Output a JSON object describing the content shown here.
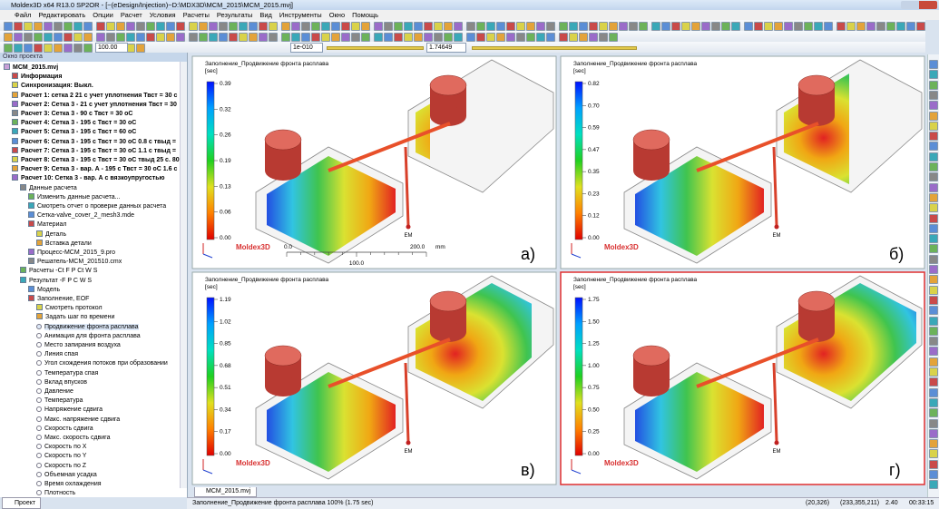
{
  "window": {
    "title": "Moldex3D  x64 R13.0 SP2OR - [~(eDesign/Injection)~D:\\MDX3D\\MCM_2015\\MCM_2015.mvj]",
    "menu": [
      "Файл",
      "Редактировать",
      "Опции",
      "Расчет",
      "Условия",
      "Расчеты",
      "Результаты",
      "Вид",
      "Инструменты",
      "Окно",
      "Помощь"
    ],
    "toolbar_inputs": [
      "100.00",
      "1e-010",
      "1.74649"
    ]
  },
  "project_panel": {
    "title": "Окно проекта",
    "tab": "Проект",
    "tree": [
      {
        "label": "MCM_2015.mvj",
        "children": [
          {
            "label": "Информация"
          },
          {
            "label": "Синхронизация: Выкл."
          },
          {
            "label": "Расчет 1: сетка 2 21 с учет уплотнения Твст = 30 с"
          },
          {
            "label": "Расчет 2: Сетка 3 - 21 с учет уплотнения Твст = 30"
          },
          {
            "label": "Расчет 3: Сетка 3 - 90 с Твст = 30 оС"
          },
          {
            "label": "Расчет 4: Сетка 3 - 195 с Твст = 30 оС"
          },
          {
            "label": "Расчет 5: Сетка 3 - 195 с Твст = 60 оС"
          },
          {
            "label": "Расчет 6: Сетка 3 - 195 с Твст = 30 оС 0.8 с твыд ="
          },
          {
            "label": "Расчет 7: Сетка 3 - 195 с Твст = 30 оС 1.1 с твыд ="
          },
          {
            "label": "Расчет 8: Сетка 3 - 195 с Твст = 30 оС твыд 25 с. 80"
          },
          {
            "label": "Расчет 9: Сетка 3 - вар. А - 195 с Твст = 30 оС 1.6 с"
          },
          {
            "label": "Расчет 10: Сетка 3 - вар. А с вязкоупругостью",
            "children": [
              {
                "label": "Данные расчета",
                "children": [
                  {
                    "label": "Изменить данные расчета..."
                  },
                  {
                    "label": "Смотреть отчет о проверке данных расчета"
                  },
                  {
                    "label": "Сетка-valve_cover_2_mesh3.mde"
                  },
                  {
                    "label": "Материал",
                    "children": [
                      {
                        "label": "Деталь"
                      },
                      {
                        "label": "Вставка детали"
                      }
                    ]
                  },
                  {
                    "label": "Процесс-MCM_2015_9.pro"
                  },
                  {
                    "label": "Решатель-MCM_201510.cmx"
                  }
                ]
              },
              {
                "label": "Расчеты -Ct F P Ct W S"
              },
              {
                "label": "Результат -F P C W S",
                "children": [
                  {
                    "label": "Модель"
                  },
                  {
                    "label": "Заполнение, EOF",
                    "children": [
                      {
                        "label": "Смотреть протокол"
                      },
                      {
                        "label": "Задать шаг по времени"
                      }
                    ],
                    "options": [
                      "Продвижение фронта расплава",
                      "Анимация для фронта расплава",
                      "Место запирания воздуха",
                      "Линия спая",
                      "Угол схождения потоков при образовании",
                      "Температура спая",
                      "Вклад впусков",
                      "Давление",
                      "Температура",
                      "Напряжение сдвига",
                      "Макс. напряжение сдвига",
                      "Скорость сдвига",
                      "Макс. скорость сдвига",
                      "Скорость по X",
                      "Скорость по Y",
                      "Скорость по Z",
                      "Объемная усадка",
                      "Время охлаждения",
                      "Плотность"
                    ],
                    "selected": 0
                  }
                ]
              }
            ]
          }
        ]
      }
    ]
  },
  "viewports": [
    {
      "legend_title": "Заполнение_Продвижение фронта расплава",
      "unit": "[sec]",
      "ticks": [
        "0.39",
        "0.32",
        "0.26",
        "0.19",
        "0.13",
        "0.06",
        "0.00"
      ],
      "logo": "Moldex3D",
      "gate_label": "EM",
      "panel_label": "а)"
    },
    {
      "legend_title": "Заполнение_Продвижение фронта расплава",
      "unit": "[sec]",
      "ticks": [
        "0.82",
        "0.70",
        "0.59",
        "0.47",
        "0.35",
        "0.23",
        "0.12",
        "0.00"
      ],
      "logo": "Moldex3D",
      "gate_label": "EM",
      "panel_label": "б)"
    },
    {
      "legend_title": "Заполнение_Продвижение фронта расплава",
      "unit": "[sec]",
      "ticks": [
        "1.19",
        "1.02",
        "0.85",
        "0.68",
        "0.51",
        "0.34",
        "0.17",
        "0.00"
      ],
      "logo": "Moldex3D",
      "gate_label": "EM",
      "panel_label": "в)"
    },
    {
      "legend_title": "Заполнение_Продвижение фронта расплава",
      "unit": "[sec]",
      "ticks": [
        "1.75",
        "1.50",
        "1.25",
        "1.00",
        "0.75",
        "0.50",
        "0.25",
        "0.00"
      ],
      "logo": "Moldex3D",
      "gate_label": "EM",
      "panel_label": "г)"
    }
  ],
  "scale_bar": {
    "start": "0.0",
    "end": "200.0",
    "unit": "mm",
    "middle": "100.0"
  },
  "document_tab": "MCM_2015.mvj",
  "status_bar": [
    "Заполнение_Продвижение фронта расплава 100% (1.75 sec)",
    "(20,326)",
    "(233,355,211)",
    "2.40",
    "00:33:15"
  ]
}
